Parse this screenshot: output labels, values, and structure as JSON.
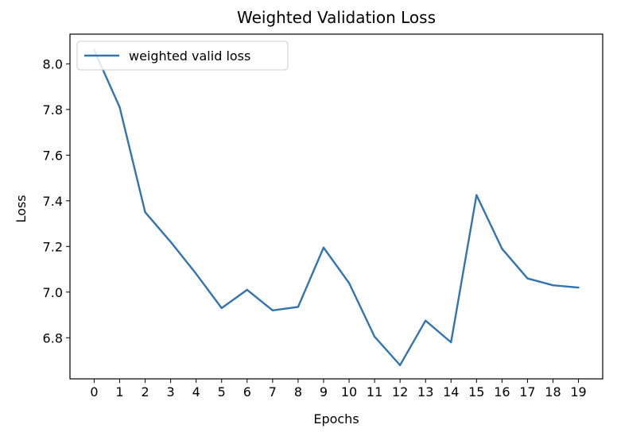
{
  "chart_data": {
    "type": "line",
    "title": "Weighted Validation Loss",
    "xlabel": "Epochs",
    "ylabel": "Loss",
    "x": [
      0,
      1,
      2,
      3,
      4,
      5,
      6,
      7,
      8,
      9,
      10,
      11,
      12,
      13,
      14,
      15,
      16,
      17,
      18,
      19
    ],
    "x_ticks": [
      "0",
      "1",
      "2",
      "3",
      "4",
      "5",
      "6",
      "7",
      "8",
      "9",
      "10",
      "11",
      "12",
      "13",
      "14",
      "15",
      "16",
      "17",
      "18",
      "19"
    ],
    "y_ticks": [
      "6.8",
      "7.0",
      "7.2",
      "7.4",
      "7.6",
      "7.8",
      "8.0"
    ],
    "ylim": [
      6.62,
      8.13
    ],
    "xlim": [
      -0.95,
      19.95
    ],
    "grid": false,
    "legend_position": "upper left",
    "series": [
      {
        "name": "weighted valid loss",
        "color": "#3274b0",
        "values": [
          8.06,
          7.81,
          7.35,
          7.22,
          7.08,
          6.93,
          7.01,
          6.92,
          6.935,
          7.195,
          7.04,
          6.805,
          6.68,
          6.875,
          6.78,
          7.425,
          7.19,
          7.06,
          7.03,
          7.02
        ]
      }
    ]
  }
}
